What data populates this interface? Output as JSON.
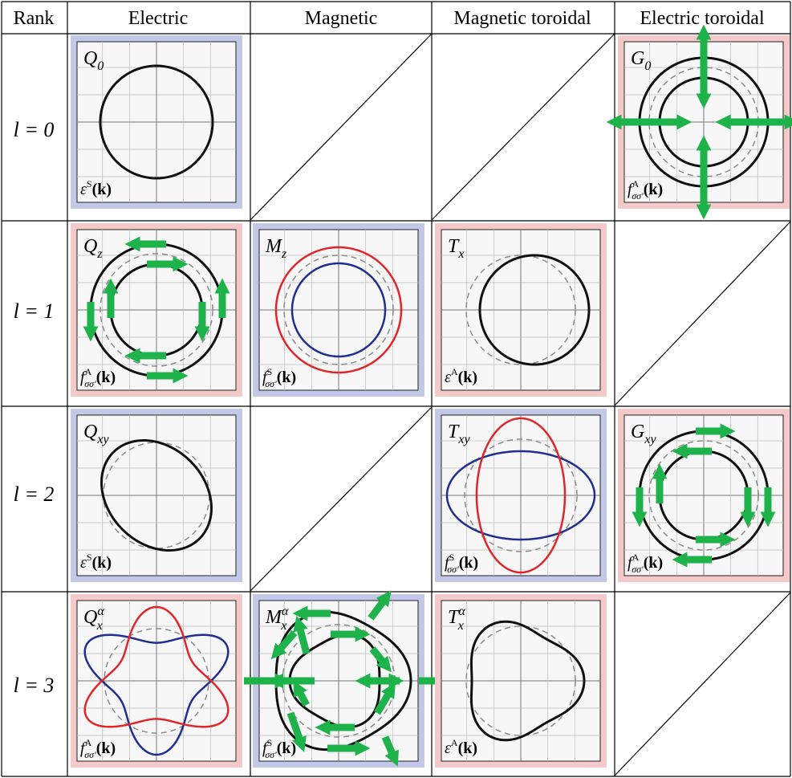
{
  "headers": {
    "rank": "Rank",
    "electric": "Electric",
    "magnetic": "Magnetic",
    "magnetic_toroidal": "Magnetic toroidal",
    "electric_toroidal": "Electric toroidal"
  },
  "rows": [
    {
      "label": "l = 0"
    },
    {
      "label": "l = 1"
    },
    {
      "label": "l = 2"
    },
    {
      "label": "l = 3"
    }
  ],
  "colors": {
    "blue_frame": "#c3c8e6",
    "red_frame": "#f4c9c9",
    "plot_bg": "#f7f7f7",
    "grid": "#bdbdbd",
    "curve_black": "#111111",
    "curve_red": "#e0262b",
    "curve_blue": "#1f2f8f",
    "curve_dashed": "#8a8a8a",
    "arrow": "#1db34a"
  },
  "panels": [
    {
      "id": "Q0",
      "symbol": "Q",
      "sub": "0",
      "sup": "",
      "func": "ε",
      "func_sup": "S",
      "func_sub": "",
      "frame": "blue"
    },
    {
      "id": "G0",
      "symbol": "G",
      "sub": "0",
      "sup": "",
      "func": "f",
      "func_sup": "A",
      "func_sub": "σσ′",
      "frame": "red"
    },
    {
      "id": "Qz",
      "symbol": "Q",
      "sub": "z",
      "sup": "",
      "func": "f",
      "func_sup": "A",
      "func_sub": "σσ′",
      "frame": "red"
    },
    {
      "id": "Mz",
      "symbol": "M",
      "sub": "z",
      "sup": "",
      "func": "f",
      "func_sup": "S",
      "func_sub": "σσ′",
      "frame": "blue"
    },
    {
      "id": "Tx",
      "symbol": "T",
      "sub": "x",
      "sup": "",
      "func": "ε",
      "func_sup": "A",
      "func_sub": "",
      "frame": "red"
    },
    {
      "id": "Qxy",
      "symbol": "Q",
      "sub": "xy",
      "sup": "",
      "func": "ε",
      "func_sup": "S",
      "func_sub": "",
      "frame": "blue"
    },
    {
      "id": "Txy",
      "symbol": "T",
      "sub": "xy",
      "sup": "",
      "func": "f",
      "func_sup": "S",
      "func_sub": "σσ′",
      "frame": "blue"
    },
    {
      "id": "Gxy",
      "symbol": "G",
      "sub": "xy",
      "sup": "",
      "func": "f",
      "func_sup": "A",
      "func_sub": "σσ′",
      "frame": "red"
    },
    {
      "id": "Qxa",
      "symbol": "Q",
      "sub": "x",
      "sup": "α",
      "func": "f",
      "func_sup": "A",
      "func_sub": "σσ′",
      "frame": "red"
    },
    {
      "id": "Mxa",
      "symbol": "M",
      "sub": "x",
      "sup": "α",
      "func": "f",
      "func_sup": "S",
      "func_sub": "σσ′",
      "frame": "blue"
    },
    {
      "id": "Txa",
      "symbol": "T",
      "sub": "x",
      "sup": "α",
      "func": "ε",
      "func_sup": "A",
      "func_sub": "",
      "frame": "red"
    }
  ],
  "func_arg": "(k)"
}
